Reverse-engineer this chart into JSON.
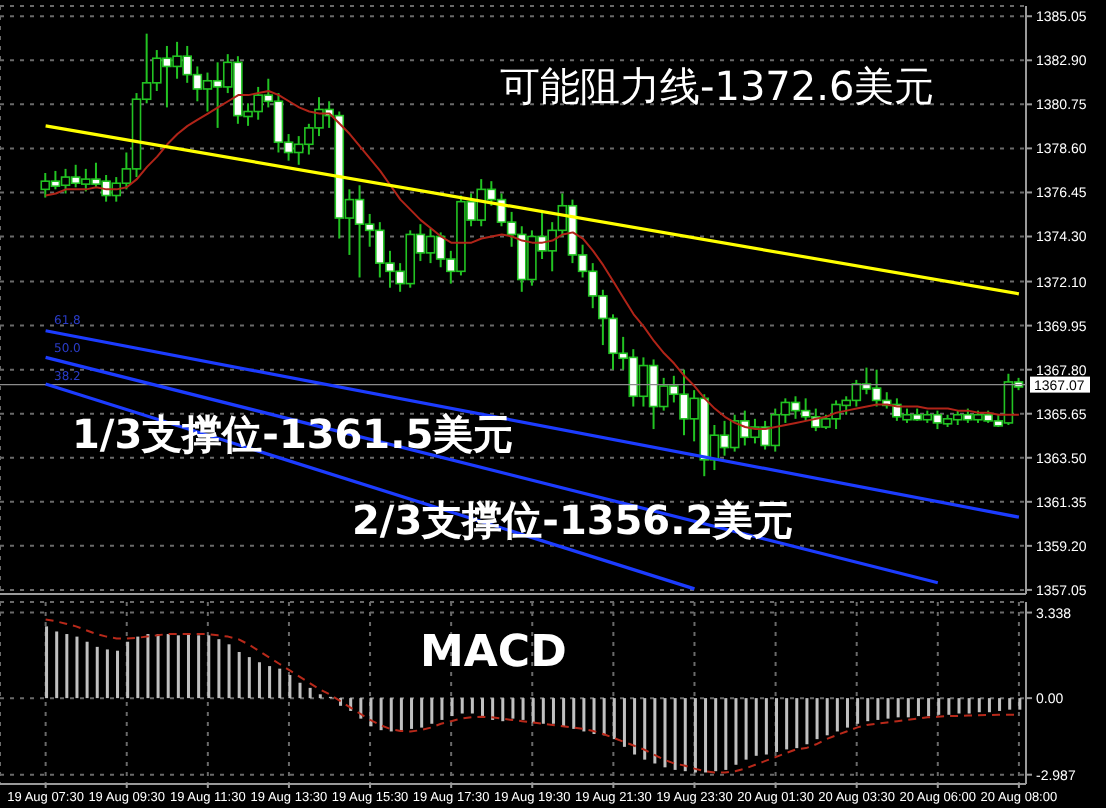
{
  "chart_data": [
    {
      "type": "candlestick",
      "color": "#22c322",
      "categories": [
        "19 Aug 07:30",
        null,
        null,
        null,
        null,
        null,
        null,
        null,
        "19 Aug 09:30",
        null,
        null,
        null,
        null,
        null,
        null,
        null,
        "19 Aug 11:30",
        null,
        null,
        null,
        null,
        null,
        null,
        null,
        "19 Aug 13:30",
        null,
        null,
        null,
        null,
        null,
        null,
        null,
        "19 Aug 15:30",
        null,
        null,
        null,
        null,
        null,
        null,
        null,
        "19 Aug 17:30",
        null,
        null,
        null,
        null,
        null,
        null,
        null,
        "19 Aug 19:30",
        null,
        null,
        null,
        null,
        null,
        null,
        null,
        "19 Aug 21:30",
        null,
        null,
        null,
        null,
        null,
        null,
        null,
        "19 Aug 23:30",
        null,
        null,
        null,
        null,
        null,
        null,
        null,
        "20 Aug 01:30",
        null,
        null,
        null,
        null,
        null,
        null,
        null,
        "20 Aug 03:30",
        null,
        null,
        null,
        null,
        null,
        null,
        null,
        "20 Aug 06:00",
        null,
        null,
        null,
        null,
        null,
        null,
        null,
        "20 Aug 08:00"
      ],
      "ohlc": [
        [
          1376.6,
          1377.4,
          1376.2,
          1377.0
        ],
        [
          1377.0,
          1377.5,
          1376.6,
          1376.8
        ],
        [
          1376.8,
          1377.6,
          1376.4,
          1377.2
        ],
        [
          1377.2,
          1377.8,
          1376.7,
          1376.9
        ],
        [
          1376.9,
          1377.6,
          1376.5,
          1377.1
        ],
        [
          1377.1,
          1377.9,
          1376.7,
          1377.0
        ],
        [
          1377.0,
          1377.3,
          1376.0,
          1376.3
        ],
        [
          1376.3,
          1377.2,
          1376.0,
          1376.9
        ],
        [
          1376.9,
          1378.4,
          1376.6,
          1377.6
        ],
        [
          1377.6,
          1381.3,
          1377.2,
          1381.0
        ],
        [
          1381.0,
          1384.2,
          1380.8,
          1381.8
        ],
        [
          1381.8,
          1383.4,
          1381.4,
          1383.0
        ],
        [
          1383.0,
          1383.6,
          1380.6,
          1382.6
        ],
        [
          1382.6,
          1383.8,
          1382.0,
          1383.1
        ],
        [
          1383.1,
          1383.6,
          1381.8,
          1382.2
        ],
        [
          1382.2,
          1382.6,
          1380.9,
          1381.5
        ],
        [
          1381.5,
          1382.3,
          1380.4,
          1381.9
        ],
        [
          1381.9,
          1382.8,
          1379.6,
          1381.6
        ],
        [
          1381.6,
          1383.2,
          1381.3,
          1382.8
        ],
        [
          1382.8,
          1383.1,
          1379.8,
          1380.2
        ],
        [
          1380.2,
          1380.8,
          1379.7,
          1380.4
        ],
        [
          1380.4,
          1381.6,
          1380.0,
          1381.2
        ],
        [
          1381.2,
          1382.0,
          1380.6,
          1380.9
        ],
        [
          1380.9,
          1381.3,
          1378.4,
          1378.9
        ],
        [
          1378.9,
          1379.3,
          1378.0,
          1378.4
        ],
        [
          1378.4,
          1379.2,
          1377.8,
          1378.8
        ],
        [
          1378.8,
          1379.8,
          1378.3,
          1379.6
        ],
        [
          1379.6,
          1381.1,
          1379.2,
          1380.5
        ],
        [
          1380.5,
          1380.9,
          1379.6,
          1380.2
        ],
        [
          1380.2,
          1380.4,
          1374.2,
          1375.2
        ],
        [
          1375.2,
          1376.6,
          1373.4,
          1376.1
        ],
        [
          1376.1,
          1376.8,
          1372.3,
          1374.9
        ],
        [
          1374.9,
          1375.4,
          1373.8,
          1374.6
        ],
        [
          1374.6,
          1375.0,
          1372.3,
          1373.0
        ],
        [
          1373.0,
          1373.6,
          1371.8,
          1372.6
        ],
        [
          1372.6,
          1373.0,
          1371.6,
          1372.0
        ],
        [
          1372.0,
          1374.6,
          1371.8,
          1374.4
        ],
        [
          1374.4,
          1374.9,
          1373.1,
          1373.5
        ],
        [
          1373.5,
          1374.7,
          1373.0,
          1374.3
        ],
        [
          1374.3,
          1374.5,
          1372.8,
          1373.2
        ],
        [
          1373.2,
          1373.6,
          1372.0,
          1372.6
        ],
        [
          1372.6,
          1376.3,
          1372.4,
          1376.0
        ],
        [
          1376.0,
          1376.4,
          1374.8,
          1375.1
        ],
        [
          1375.1,
          1377.1,
          1374.8,
          1376.6
        ],
        [
          1376.6,
          1377.0,
          1375.8,
          1376.1
        ],
        [
          1376.1,
          1376.4,
          1374.8,
          1375.0
        ],
        [
          1375.0,
          1375.5,
          1373.8,
          1374.4
        ],
        [
          1374.4,
          1374.8,
          1371.6,
          1372.2
        ],
        [
          1372.2,
          1374.6,
          1371.9,
          1374.3
        ],
        [
          1374.3,
          1375.6,
          1373.2,
          1373.6
        ],
        [
          1373.6,
          1375.0,
          1372.6,
          1374.6
        ],
        [
          1374.6,
          1376.4,
          1374.3,
          1375.8
        ],
        [
          1375.8,
          1376.1,
          1373.0,
          1373.4
        ],
        [
          1373.4,
          1373.9,
          1372.3,
          1372.6
        ],
        [
          1372.6,
          1373.0,
          1370.8,
          1371.4
        ],
        [
          1371.4,
          1371.7,
          1369.0,
          1370.3
        ],
        [
          1370.3,
          1370.5,
          1367.8,
          1368.6
        ],
        [
          1368.6,
          1369.4,
          1367.8,
          1368.4
        ],
        [
          1368.4,
          1368.8,
          1366.0,
          1366.5
        ],
        [
          1366.5,
          1368.4,
          1366.0,
          1368.0
        ],
        [
          1368.0,
          1368.3,
          1364.9,
          1366.0
        ],
        [
          1366.0,
          1367.4,
          1365.8,
          1367.0
        ],
        [
          1367.0,
          1367.5,
          1366.2,
          1366.6
        ],
        [
          1366.6,
          1367.8,
          1364.6,
          1365.4
        ],
        [
          1365.4,
          1366.8,
          1364.3,
          1366.4
        ],
        [
          1366.4,
          1366.6,
          1362.6,
          1363.4
        ],
        [
          1363.4,
          1365.1,
          1362.9,
          1364.6
        ],
        [
          1364.6,
          1365.3,
          1363.6,
          1364.0
        ],
        [
          1364.0,
          1365.6,
          1363.8,
          1365.3
        ],
        [
          1365.3,
          1365.8,
          1364.1,
          1364.5
        ],
        [
          1364.5,
          1365.4,
          1364.2,
          1365.0
        ],
        [
          1365.0,
          1365.3,
          1363.9,
          1364.1
        ],
        [
          1364.1,
          1365.9,
          1363.8,
          1365.6
        ],
        [
          1365.6,
          1366.4,
          1365.2,
          1366.2
        ],
        [
          1366.2,
          1366.5,
          1365.4,
          1365.8
        ],
        [
          1365.8,
          1366.4,
          1365.3,
          1365.5
        ],
        [
          1365.5,
          1365.9,
          1364.8,
          1365.0
        ],
        [
          1365.0,
          1365.6,
          1364.9,
          1365.4
        ],
        [
          1365.4,
          1366.3,
          1364.9,
          1366.1
        ],
        [
          1366.1,
          1366.5,
          1365.6,
          1366.3
        ],
        [
          1366.3,
          1367.3,
          1366.0,
          1367.1
        ],
        [
          1367.1,
          1367.9,
          1366.6,
          1366.9
        ],
        [
          1366.9,
          1367.8,
          1366.0,
          1366.3
        ],
        [
          1366.3,
          1366.7,
          1365.9,
          1366.1
        ],
        [
          1366.1,
          1366.4,
          1365.3,
          1365.5
        ],
        [
          1365.5,
          1365.9,
          1365.2,
          1365.6
        ],
        [
          1365.6,
          1365.9,
          1365.3,
          1365.5
        ],
        [
          1365.5,
          1365.8,
          1365.2,
          1365.6
        ],
        [
          1365.6,
          1365.8,
          1364.9,
          1365.2
        ],
        [
          1365.2,
          1365.6,
          1365.0,
          1365.4
        ],
        [
          1365.4,
          1365.8,
          1365.1,
          1365.6
        ],
        [
          1365.6,
          1365.9,
          1365.2,
          1365.5
        ],
        [
          1365.5,
          1365.8,
          1365.2,
          1365.6
        ],
        [
          1365.6,
          1365.8,
          1365.2,
          1365.3
        ],
        [
          1365.3,
          1365.6,
          1365.0,
          1365.2
        ],
        [
          1365.2,
          1367.6,
          1365.1,
          1367.2
        ],
        [
          1367.2,
          1367.4,
          1366.8,
          1367.07
        ]
      ],
      "series": [
        {
          "type": "line",
          "color": "#b02418",
          "values": [
            1376.3,
            1376.4,
            1376.6,
            1376.6,
            1376.6,
            1376.7,
            1376.6,
            1376.6,
            1376.7,
            1377.1,
            1377.7,
            1378.2,
            1378.8,
            1379.3,
            1379.7,
            1380.0,
            1380.3,
            1380.6,
            1380.9,
            1381.2,
            1381.2,
            1381.3,
            1381.4,
            1381.2,
            1380.9,
            1380.6,
            1380.4,
            1380.3,
            1380.3,
            1379.8,
            1379.3,
            1378.7,
            1378.1,
            1377.5,
            1376.8,
            1376.1,
            1375.6,
            1375.1,
            1374.7,
            1374.3,
            1374.0,
            1374.0,
            1374.0,
            1374.2,
            1374.3,
            1374.4,
            1374.3,
            1374.1,
            1374.0,
            1374.0,
            1374.1,
            1374.4,
            1374.5,
            1374.2,
            1373.6,
            1372.9,
            1372.1,
            1371.3,
            1370.5,
            1369.9,
            1369.2,
            1368.6,
            1368.1,
            1367.5,
            1367.0,
            1366.4,
            1365.9,
            1365.5,
            1365.2,
            1365.0,
            1364.9,
            1364.9,
            1365.0,
            1365.1,
            1365.2,
            1365.3,
            1365.4,
            1365.5,
            1365.7,
            1365.8,
            1365.9,
            1366.0,
            1366.1,
            1366.1,
            1366.0,
            1366.0,
            1366.0,
            1365.9,
            1365.9,
            1365.9,
            1365.8,
            1365.8,
            1365.7,
            1365.7,
            1365.6,
            1365.6,
            1365.6
          ]
        },
        {
          "type": "line",
          "color": "#ffff00",
          "x": [
            "19 Aug 07:30",
            "20 Aug 08:00"
          ],
          "values": [
            1379.7,
            1371.5
          ]
        },
        {
          "type": "line",
          "color": "#1c3cff",
          "x": [
            "19 Aug 07:30",
            "20 Aug 08:00"
          ],
          "values": [
            1369.7,
            1360.6
          ]
        },
        {
          "type": "line",
          "color": "#1c3cff",
          "x": [
            "19 Aug 07:30",
            "20 Aug 06:00"
          ],
          "values": [
            1368.4,
            1357.4
          ]
        },
        {
          "type": "line",
          "color": "#1c3cff",
          "x": [
            "19 Aug 07:30",
            "19 Aug 23:30"
          ],
          "values": [
            1367.1,
            1357.1
          ]
        }
      ],
      "ylim": [
        1356.85,
        1385.55
      ],
      "yticks": [
        1385.05,
        {
          "value": 1382.9,
          "label": "1382.90"
        },
        1380.75,
        {
          "value": 1378.6,
          "label": "1378.60"
        },
        1376.45,
        {
          "value": 1374.3,
          "label": "1374.30"
        },
        {
          "value": 1372.1,
          "label": "1372.10"
        },
        1369.95,
        {
          "value": 1367.8,
          "label": "1367.80"
        },
        1365.65,
        {
          "value": 1363.5,
          "label": "1363.50"
        },
        1361.35,
        {
          "value": 1359.2,
          "label": "1359.20"
        },
        1357.05
      ],
      "ref_lines": [
        {
          "axis": "y",
          "value": 1367.07,
          "label": "1367.07",
          "color": "#8c8c8c"
        }
      ],
      "annotations": [
        "可能阻力线-1372.6美元",
        "1/3支撑位-1361.5美元",
        "2/3支撑位-1356.2美元",
        "61.8",
        "50.0",
        "38.2"
      ],
      "grid": true,
      "tick_labels": "y"
    },
    {
      "type": "bar",
      "title": "MACD",
      "categories": [
        "19 Aug 07:30",
        null,
        null,
        null,
        null,
        null,
        null,
        null,
        "19 Aug 09:30",
        null,
        null,
        null,
        null,
        null,
        null,
        null,
        "19 Aug 11:30",
        null,
        null,
        null,
        null,
        null,
        null,
        null,
        "19 Aug 13:30",
        null,
        null,
        null,
        null,
        null,
        null,
        null,
        "19 Aug 15:30",
        null,
        null,
        null,
        null,
        null,
        null,
        null,
        "19 Aug 17:30",
        null,
        null,
        null,
        null,
        null,
        null,
        null,
        "19 Aug 19:30",
        null,
        null,
        null,
        null,
        null,
        null,
        null,
        "19 Aug 21:30",
        null,
        null,
        null,
        null,
        null,
        null,
        null,
        "19 Aug 23:30",
        null,
        null,
        null,
        null,
        null,
        null,
        null,
        "20 Aug 01:30",
        null,
        null,
        null,
        null,
        null,
        null,
        null,
        "20 Aug 03:30",
        null,
        null,
        null,
        null,
        null,
        null,
        null,
        "20 Aug 06:00",
        null,
        null,
        null,
        null,
        null,
        null,
        null,
        "20 Aug 08:00"
      ],
      "series": [
        {
          "type": "bar",
          "color": "#c0c0c0",
          "values": [
            2.8,
            2.6,
            2.5,
            2.4,
            2.2,
            2.0,
            1.9,
            1.85,
            2.2,
            2.4,
            2.5,
            2.5,
            2.5,
            2.45,
            2.5,
            2.45,
            2.45,
            2.3,
            2.1,
            1.8,
            1.6,
            1.4,
            1.25,
            1.15,
            0.9,
            0.6,
            0.4,
            0.15,
            0.05,
            -0.3,
            -0.5,
            -0.8,
            -1.1,
            -1.25,
            -1.3,
            -1.3,
            -1.2,
            -1.15,
            -1.0,
            -0.85,
            -0.7,
            -0.6,
            -0.6,
            -0.75,
            -0.85,
            -0.9,
            -0.8,
            -0.85,
            -0.95,
            -1.0,
            -1.0,
            -1.1,
            -1.2,
            -1.3,
            -1.4,
            -1.45,
            -1.6,
            -1.9,
            -2.2,
            -2.4,
            -2.55,
            -2.7,
            -2.8,
            -2.85,
            -2.9,
            -2.9,
            -2.85,
            -2.8,
            -2.6,
            -2.4,
            -2.25,
            -2.2,
            -2.1,
            -2.0,
            -1.95,
            -1.8,
            -1.6,
            -1.45,
            -1.3,
            -1.15,
            -1.0,
            -0.9,
            -0.85,
            -0.8,
            -0.75,
            -0.75,
            -0.7,
            -0.7,
            -0.65,
            -0.65,
            -0.6,
            -0.6,
            -0.55,
            -0.55,
            -0.5,
            -0.45,
            -0.45
          ]
        },
        {
          "type": "line",
          "color": "#b8291a",
          "line_style": "dashed",
          "values": [
            3.07,
            3.0,
            2.9,
            2.8,
            2.65,
            2.5,
            2.4,
            2.33,
            2.33,
            2.35,
            2.4,
            2.45,
            2.5,
            2.5,
            2.5,
            2.5,
            2.5,
            2.45,
            2.4,
            2.3,
            2.1,
            1.85,
            1.6,
            1.35,
            1.1,
            0.85,
            0.6,
            0.35,
            0.15,
            -0.1,
            -0.35,
            -0.6,
            -0.85,
            -1.05,
            -1.2,
            -1.28,
            -1.3,
            -1.25,
            -1.15,
            -1.0,
            -0.9,
            -0.8,
            -0.75,
            -0.73,
            -0.75,
            -0.8,
            -0.85,
            -0.9,
            -0.95,
            -1.0,
            -1.05,
            -1.1,
            -1.15,
            -1.2,
            -1.28,
            -1.4,
            -1.55,
            -1.7,
            -1.85,
            -2.0,
            -2.2,
            -2.4,
            -2.55,
            -2.63,
            -2.75,
            -2.85,
            -2.9,
            -2.9,
            -2.85,
            -2.75,
            -2.6,
            -2.45,
            -2.3,
            -2.15,
            -2.0,
            -1.95,
            -1.8,
            -1.6,
            -1.45,
            -1.3,
            -1.15,
            -1.05,
            -1.0,
            -0.95,
            -0.9,
            -0.85,
            -0.8,
            -0.75,
            -0.73,
            -0.7,
            -0.7,
            -0.68,
            -0.67,
            -0.66,
            -0.65,
            -0.65,
            -0.65
          ]
        }
      ],
      "ylim": [
        -3.35,
        3.75
      ],
      "yticks": [
        3.338,
        {
          "value": 0,
          "label": "0.00"
        },
        -2.987
      ],
      "grid": true
    }
  ]
}
